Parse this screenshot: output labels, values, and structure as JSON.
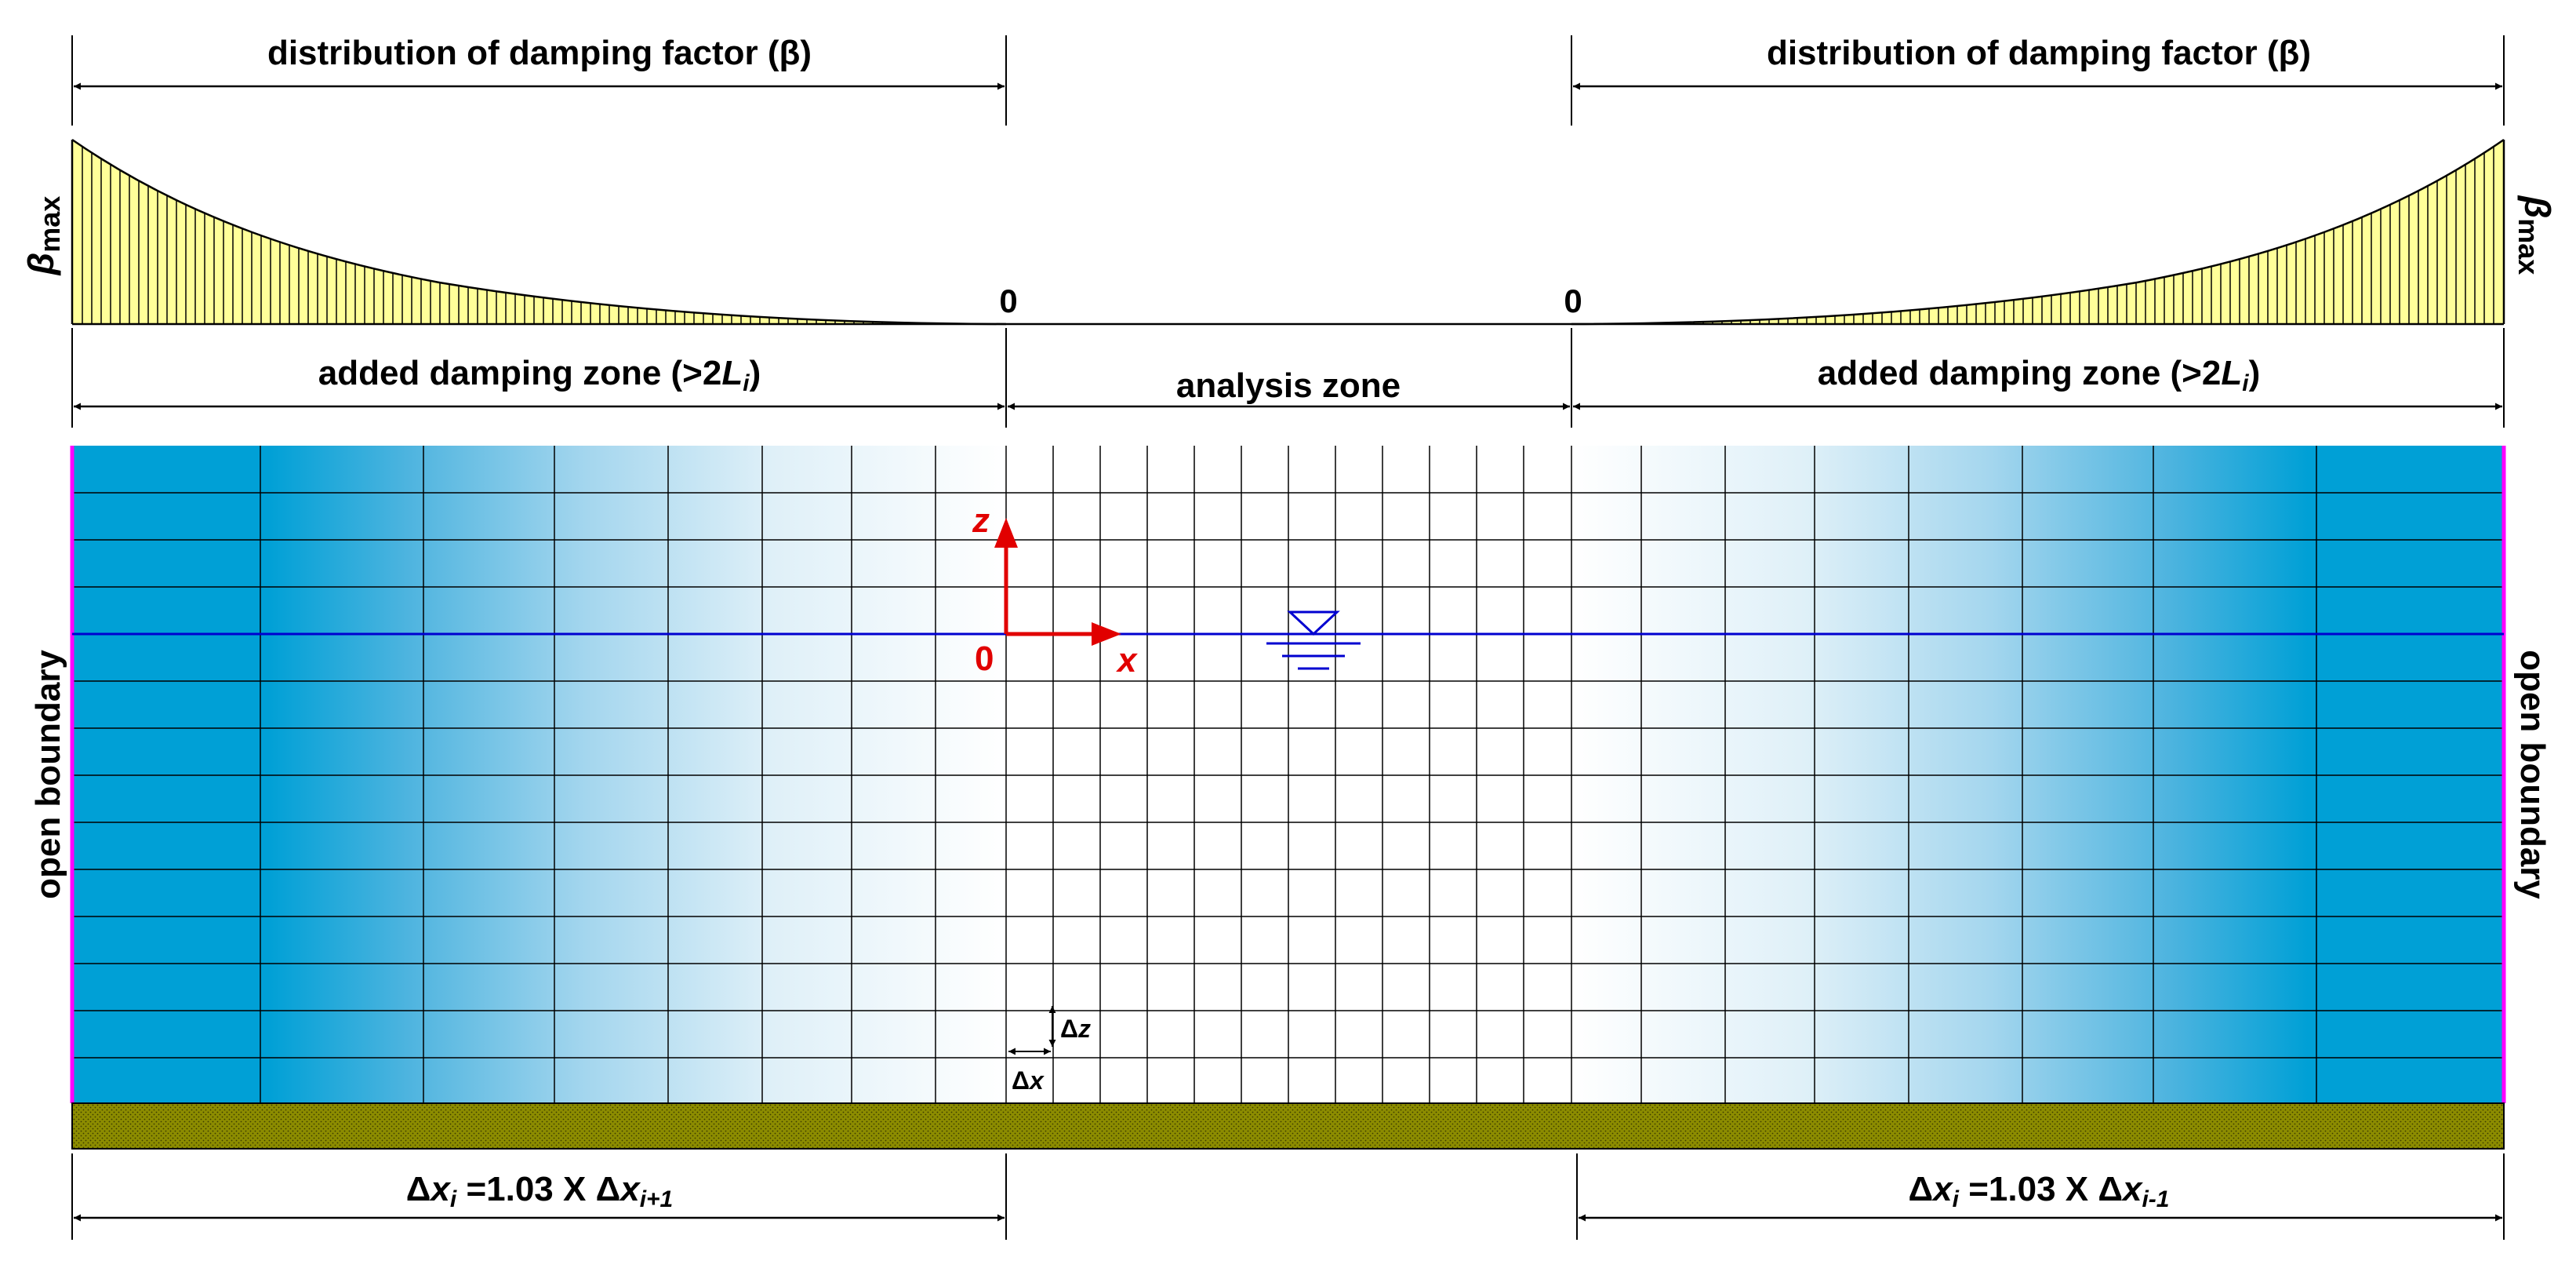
{
  "top_labels": {
    "left_title": "distribution of damping factor (β)",
    "right_title": "distribution of damping factor (β)",
    "beta_max_symbol": "β",
    "beta_max_sub": "max",
    "zero_left": "0",
    "zero_right": "0"
  },
  "zones": {
    "left_damping_pre": "added damping zone (>2",
    "left_damping_L": "L",
    "left_damping_i": "i",
    "left_damping_post": ")",
    "analysis": "analysis zone",
    "right_damping_pre": "added damping zone (>2",
    "right_damping_L": "L",
    "right_damping_i": "i",
    "right_damping_post": ")"
  },
  "boundaries": {
    "left": "open boundary",
    "right": "open boundary"
  },
  "axes": {
    "z": "z",
    "x": "x",
    "origin": "0"
  },
  "mesh_labels": {
    "dz_delta": "Δ",
    "dz_var": "z",
    "dx_delta": "Δ",
    "dx_var": "x"
  },
  "bottom_labels": {
    "left": {
      "delta": "Δ",
      "x": "x",
      "i": "i",
      "eq": " =1.03 X ",
      "delta2": "Δ",
      "x2": "x",
      "sub2": "i+1"
    },
    "right": {
      "delta": "Δ",
      "x": "x",
      "i": "i",
      "eq": " =1.03 X ",
      "delta2": "Δ",
      "x2": "x",
      "sub2": "i-1"
    }
  },
  "colors": {
    "water": "#00a0d6",
    "water_line": "#0000d0",
    "boundary": "#ff00ff",
    "seabed": "#8c8c00",
    "damping_fill": "#ffff99",
    "axis": "#e10000"
  }
}
